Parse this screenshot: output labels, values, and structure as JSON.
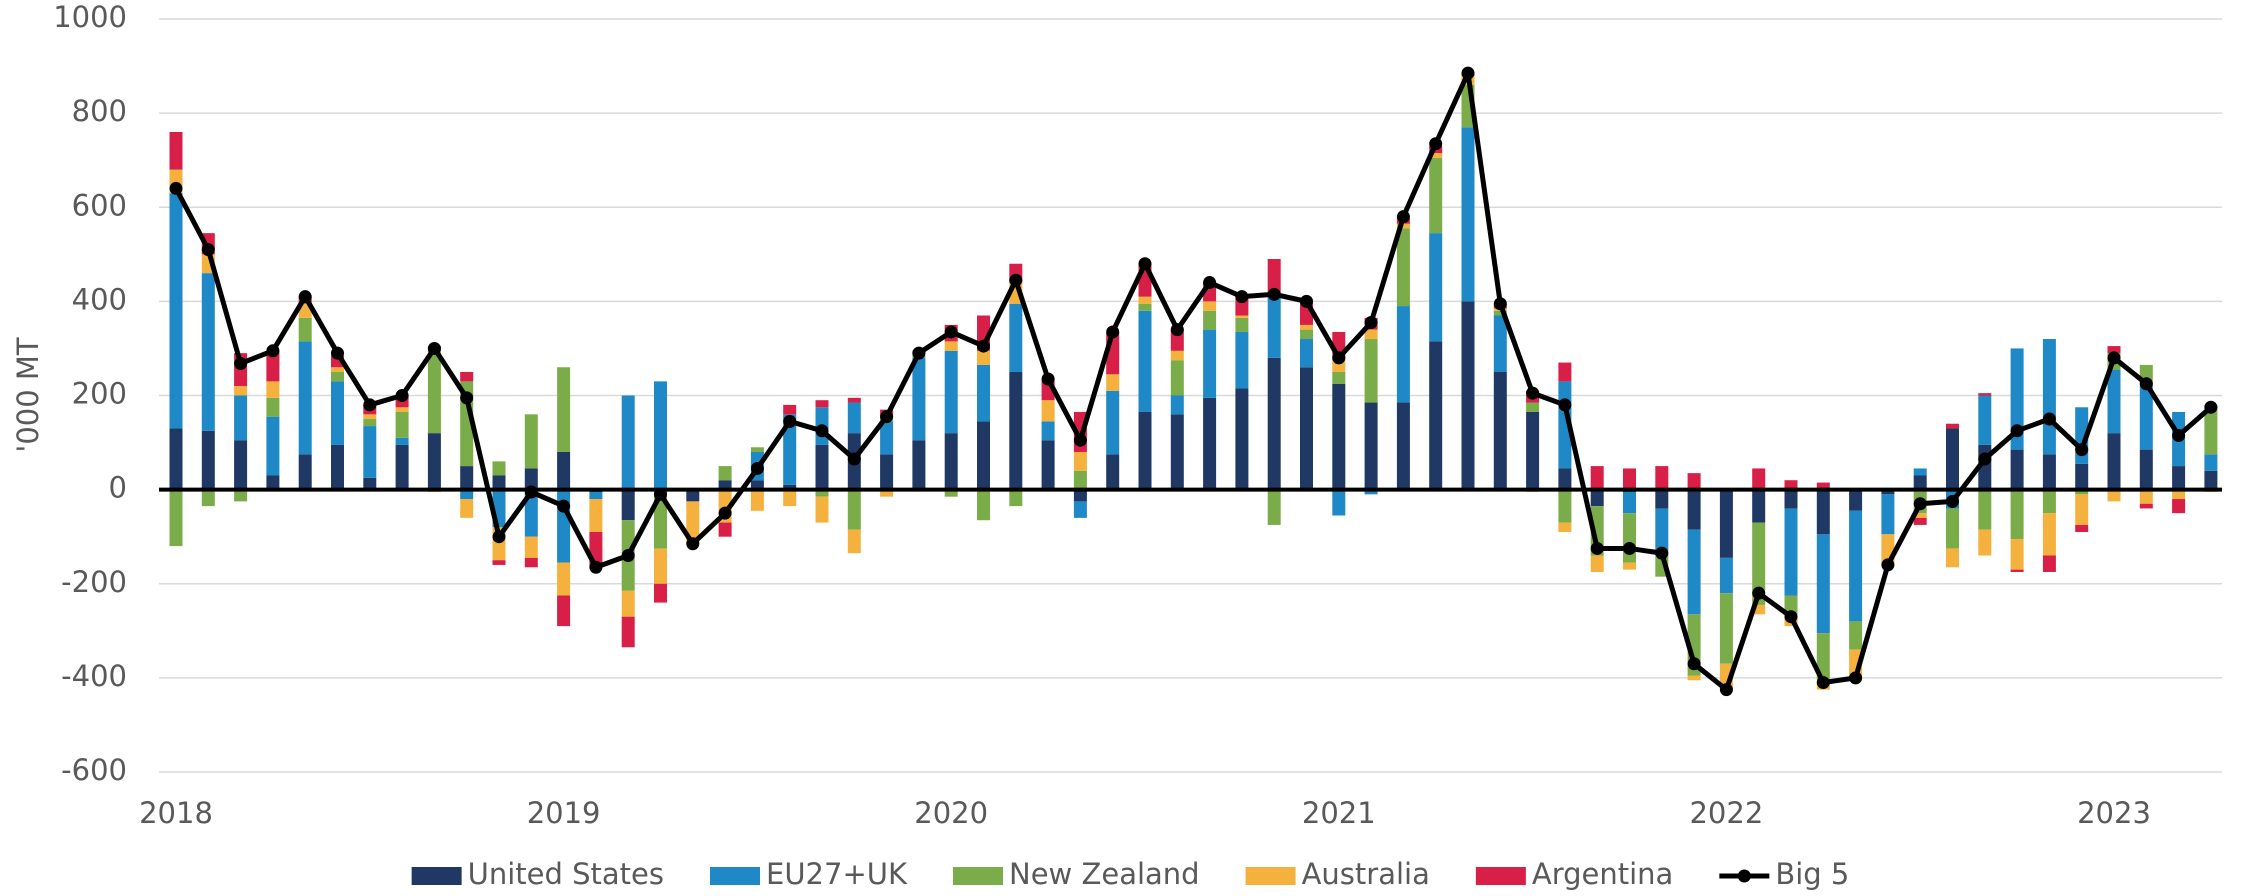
{
  "chart_data": {
    "type": "bar",
    "stacked": true,
    "y_label": "'000 MT",
    "categories": [
      "2018",
      null,
      null,
      null,
      null,
      null,
      null,
      null,
      null,
      null,
      null,
      null,
      "2019",
      null,
      null,
      null,
      null,
      null,
      null,
      null,
      null,
      null,
      null,
      null,
      "2020",
      null,
      null,
      null,
      null,
      null,
      null,
      null,
      null,
      null,
      null,
      null,
      "2021",
      null,
      null,
      null,
      null,
      null,
      null,
      null,
      null,
      null,
      null,
      null,
      "2022",
      null,
      null,
      null,
      null,
      null,
      null,
      null,
      null,
      null,
      null,
      null,
      "2023",
      null,
      null,
      null
    ],
    "ylim": [
      -600,
      1000
    ],
    "yticks": [
      -600,
      -400,
      -200,
      0,
      200,
      400,
      600,
      800,
      1000
    ],
    "grid": true,
    "legend": "bottom",
    "series": [
      {
        "name": "United States",
        "color": "#1f3864",
        "type": "bar",
        "values": [
          130,
          125,
          105,
          30,
          75,
          95,
          25,
          95,
          120,
          50,
          30,
          45,
          80,
          -5,
          -65,
          0,
          -25,
          20,
          20,
          10,
          95,
          120,
          75,
          105,
          120,
          145,
          250,
          105,
          -25,
          75,
          165,
          160,
          195,
          215,
          280,
          260,
          225,
          185,
          185,
          315,
          400,
          250,
          165,
          45,
          -35,
          -5,
          -40,
          -85,
          -145,
          -70,
          -40,
          -95,
          -45,
          -10,
          30,
          130,
          95,
          85,
          75,
          55,
          120,
          85,
          50,
          40
        ]
      },
      {
        "name": "EU27+UK",
        "color": "#1f88c6",
        "type": "bar",
        "values": [
          500,
          335,
          95,
          125,
          240,
          135,
          110,
          15,
          0,
          -20,
          -80,
          -100,
          -155,
          -15,
          200,
          230,
          0,
          0,
          60,
          150,
          80,
          65,
          70,
          175,
          175,
          120,
          145,
          40,
          -35,
          135,
          215,
          40,
          145,
          120,
          135,
          60,
          -55,
          -10,
          205,
          230,
          370,
          120,
          0,
          185,
          0,
          -45,
          -100,
          -180,
          -75,
          0,
          -185,
          -210,
          -235,
          -85,
          15,
          -40,
          105,
          215,
          245,
          120,
          135,
          140,
          115,
          35
        ]
      },
      {
        "name": "New Zealand",
        "color": "#7aad4a",
        "type": "bar",
        "values": [
          -120,
          -35,
          -25,
          40,
          50,
          20,
          15,
          55,
          175,
          180,
          30,
          115,
          180,
          0,
          -150,
          -125,
          0,
          30,
          10,
          0,
          -15,
          -85,
          10,
          5,
          -15,
          -65,
          -35,
          0,
          40,
          0,
          15,
          75,
          40,
          30,
          -75,
          20,
          25,
          135,
          165,
          160,
          90,
          10,
          20,
          -70,
          -105,
          -105,
          -45,
          -130,
          -150,
          -175,
          -45,
          -100,
          -60,
          0,
          -50,
          -85,
          -85,
          -105,
          -50,
          -10,
          35,
          40,
          0,
          105
        ]
      },
      {
        "name": "Australia",
        "color": "#f4b13d",
        "type": "bar",
        "values": [
          50,
          40,
          20,
          35,
          30,
          10,
          10,
          10,
          -5,
          -40,
          -70,
          -45,
          -70,
          -70,
          -55,
          -75,
          -90,
          -70,
          -45,
          -35,
          -55,
          -50,
          -15,
          5,
          20,
          30,
          45,
          45,
          40,
          35,
          15,
          20,
          20,
          5,
          0,
          10,
          25,
          20,
          10,
          10,
          20,
          5,
          -5,
          -20,
          -35,
          -15,
          0,
          -10,
          -55,
          -20,
          -20,
          -20,
          -60,
          -65,
          -10,
          -40,
          -55,
          -65,
          -90,
          -65,
          -25,
          -30,
          -20,
          -5
        ]
      },
      {
        "name": "Argentina",
        "color": "#d71f48",
        "type": "bar",
        "values": [
          80,
          45,
          70,
          65,
          15,
          25,
          20,
          25,
          10,
          20,
          -10,
          -20,
          -65,
          -75,
          -65,
          -40,
          0,
          -30,
          0,
          20,
          15,
          10,
          15,
          5,
          35,
          75,
          40,
          45,
          85,
          90,
          70,
          45,
          40,
          40,
          75,
          50,
          60,
          25,
          15,
          15,
          5,
          10,
          25,
          40,
          50,
          45,
          50,
          35,
          0,
          45,
          20,
          15,
          0,
          0,
          -15,
          10,
          5,
          -5,
          -35,
          -15,
          15,
          -10,
          -30,
          0
        ]
      },
      {
        "name": "Big 5",
        "color": "#000000",
        "type": "line",
        "values": [
          640,
          510,
          268,
          295,
          410,
          290,
          180,
          200,
          300,
          195,
          -100,
          -5,
          -35,
          -165,
          -140,
          -10,
          -115,
          -50,
          45,
          145,
          125,
          65,
          155,
          290,
          335,
          305,
          445,
          235,
          105,
          335,
          480,
          340,
          440,
          410,
          415,
          400,
          280,
          355,
          580,
          735,
          885,
          395,
          205,
          180,
          -125,
          -125,
          -135,
          -370,
          -425,
          -220,
          -270,
          -410,
          -400,
          -160,
          -30,
          -25,
          65,
          125,
          150,
          85,
          280,
          225,
          115,
          175
        ]
      }
    ]
  }
}
